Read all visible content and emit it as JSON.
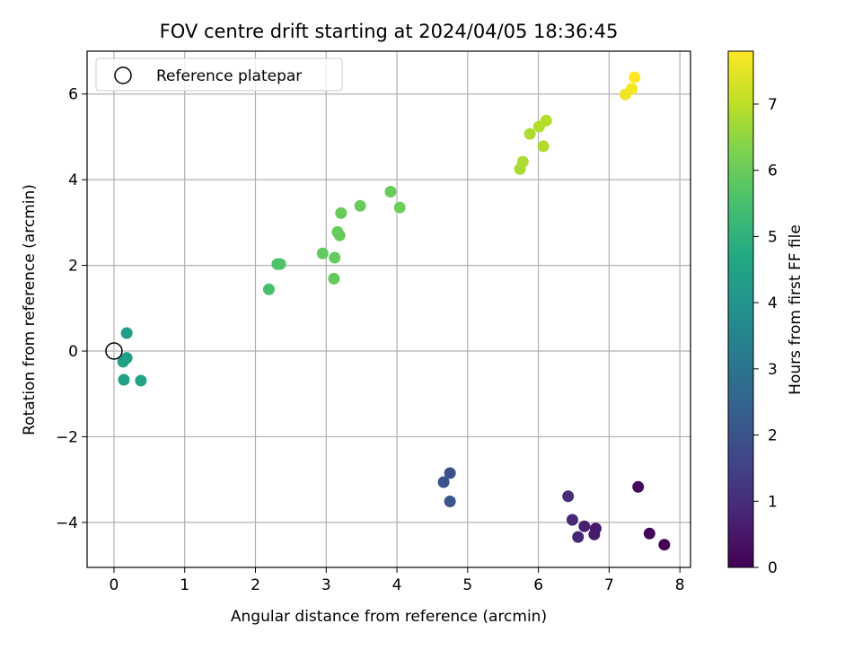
{
  "chart_data": {
    "type": "scatter",
    "title": "FOV centre drift starting at 2024/04/05 18:36:45",
    "xlabel": "Angular distance from reference (arcmin)",
    "ylabel": "Rotation from reference (arcmin)",
    "xlim": [
      -0.38,
      8.15
    ],
    "ylim": [
      -5.05,
      7.0
    ],
    "xticks": [
      0,
      1,
      2,
      3,
      4,
      5,
      6,
      7,
      8
    ],
    "yticks": [
      -4,
      -2,
      0,
      2,
      4,
      6
    ],
    "ytick_labels": [
      "−4",
      "−2",
      "0",
      "2",
      "4",
      "6"
    ],
    "grid": true,
    "legend": {
      "position": "top-left",
      "entries": [
        "Reference platepar"
      ]
    },
    "reference_point": {
      "x": 0,
      "y": 0
    },
    "colorbar": {
      "label": "Hours from first FF file",
      "colormap": "viridis",
      "range": [
        0,
        7.8
      ],
      "ticks": [
        0,
        1,
        2,
        3,
        4,
        5,
        6,
        7
      ]
    },
    "points": [
      {
        "x": 7.78,
        "y": -4.52,
        "c": 0.0
      },
      {
        "x": 7.57,
        "y": -4.26,
        "c": 0.1
      },
      {
        "x": 7.41,
        "y": -3.17,
        "c": 0.2
      },
      {
        "x": 6.81,
        "y": -4.14,
        "c": 0.5
      },
      {
        "x": 6.79,
        "y": -4.28,
        "c": 0.6
      },
      {
        "x": 6.65,
        "y": -4.09,
        "c": 0.7
      },
      {
        "x": 6.56,
        "y": -4.34,
        "c": 0.8
      },
      {
        "x": 6.48,
        "y": -3.94,
        "c": 0.9
      },
      {
        "x": 6.42,
        "y": -3.39,
        "c": 1.0
      },
      {
        "x": 4.75,
        "y": -2.85,
        "c": 1.9
      },
      {
        "x": 4.66,
        "y": -3.06,
        "c": 2.0
      },
      {
        "x": 4.75,
        "y": -3.51,
        "c": 2.05
      },
      {
        "x": 0.18,
        "y": 0.42,
        "c": 4.3
      },
      {
        "x": 0.18,
        "y": -0.16,
        "c": 4.35
      },
      {
        "x": 0.13,
        "y": -0.25,
        "c": 4.4
      },
      {
        "x": 0.14,
        "y": -0.67,
        "c": 4.45
      },
      {
        "x": 0.38,
        "y": -0.69,
        "c": 4.5
      },
      {
        "x": 2.19,
        "y": 1.44,
        "c": 5.5
      },
      {
        "x": 2.31,
        "y": 2.03,
        "c": 5.55
      },
      {
        "x": 2.35,
        "y": 2.03,
        "c": 5.6
      },
      {
        "x": 2.95,
        "y": 2.28,
        "c": 5.9
      },
      {
        "x": 3.12,
        "y": 2.18,
        "c": 5.92
      },
      {
        "x": 3.11,
        "y": 1.69,
        "c": 5.94
      },
      {
        "x": 3.16,
        "y": 2.78,
        "c": 5.95
      },
      {
        "x": 3.19,
        "y": 2.7,
        "c": 5.96
      },
      {
        "x": 3.21,
        "y": 3.22,
        "c": 5.97
      },
      {
        "x": 3.48,
        "y": 3.39,
        "c": 5.98
      },
      {
        "x": 3.91,
        "y": 3.72,
        "c": 6.0
      },
      {
        "x": 4.04,
        "y": 3.35,
        "c": 6.05
      },
      {
        "x": 5.74,
        "y": 4.25,
        "c": 6.8
      },
      {
        "x": 5.78,
        "y": 4.42,
        "c": 6.82
      },
      {
        "x": 5.88,
        "y": 5.07,
        "c": 6.85
      },
      {
        "x": 6.07,
        "y": 4.78,
        "c": 6.88
      },
      {
        "x": 6.01,
        "y": 5.24,
        "c": 6.9
      },
      {
        "x": 6.11,
        "y": 5.38,
        "c": 6.92
      },
      {
        "x": 7.23,
        "y": 5.99,
        "c": 7.6
      },
      {
        "x": 7.32,
        "y": 6.12,
        "c": 7.7
      },
      {
        "x": 7.36,
        "y": 6.39,
        "c": 7.8
      }
    ]
  }
}
